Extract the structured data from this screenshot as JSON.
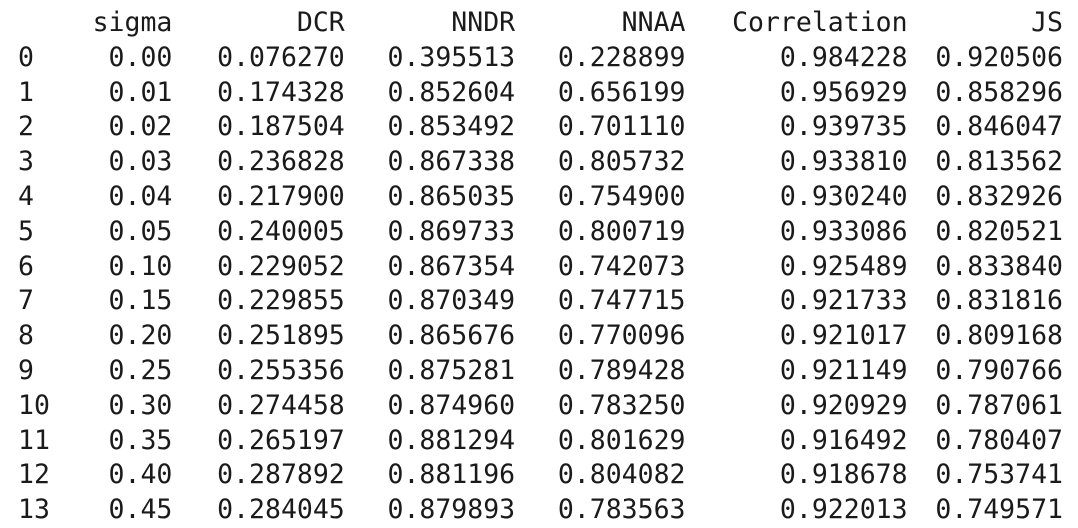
{
  "table": {
    "index_header": "",
    "columns": [
      "sigma",
      "DCR",
      "NNDR",
      "NNAA",
      "Correlation",
      "JS"
    ],
    "rows": [
      {
        "index": "0",
        "cells": [
          "0.00",
          "0.076270",
          "0.395513",
          "0.228899",
          "0.984228",
          "0.920506"
        ]
      },
      {
        "index": "1",
        "cells": [
          "0.01",
          "0.174328",
          "0.852604",
          "0.656199",
          "0.956929",
          "0.858296"
        ]
      },
      {
        "index": "2",
        "cells": [
          "0.02",
          "0.187504",
          "0.853492",
          "0.701110",
          "0.939735",
          "0.846047"
        ]
      },
      {
        "index": "3",
        "cells": [
          "0.03",
          "0.236828",
          "0.867338",
          "0.805732",
          "0.933810",
          "0.813562"
        ]
      },
      {
        "index": "4",
        "cells": [
          "0.04",
          "0.217900",
          "0.865035",
          "0.754900",
          "0.930240",
          "0.832926"
        ]
      },
      {
        "index": "5",
        "cells": [
          "0.05",
          "0.240005",
          "0.869733",
          "0.800719",
          "0.933086",
          "0.820521"
        ]
      },
      {
        "index": "6",
        "cells": [
          "0.10",
          "0.229052",
          "0.867354",
          "0.742073",
          "0.925489",
          "0.833840"
        ]
      },
      {
        "index": "7",
        "cells": [
          "0.15",
          "0.229855",
          "0.870349",
          "0.747715",
          "0.921733",
          "0.831816"
        ]
      },
      {
        "index": "8",
        "cells": [
          "0.20",
          "0.251895",
          "0.865676",
          "0.770096",
          "0.921017",
          "0.809168"
        ]
      },
      {
        "index": "9",
        "cells": [
          "0.25",
          "0.255356",
          "0.875281",
          "0.789428",
          "0.921149",
          "0.790766"
        ]
      },
      {
        "index": "10",
        "cells": [
          "0.30",
          "0.274458",
          "0.874960",
          "0.783250",
          "0.920929",
          "0.787061"
        ]
      },
      {
        "index": "11",
        "cells": [
          "0.35",
          "0.265197",
          "0.881294",
          "0.801629",
          "0.916492",
          "0.780407"
        ]
      },
      {
        "index": "12",
        "cells": [
          "0.40",
          "0.287892",
          "0.881196",
          "0.804082",
          "0.918678",
          "0.753741"
        ]
      },
      {
        "index": "13",
        "cells": [
          "0.45",
          "0.284045",
          "0.879893",
          "0.783563",
          "0.922013",
          "0.749571"
        ]
      }
    ]
  }
}
